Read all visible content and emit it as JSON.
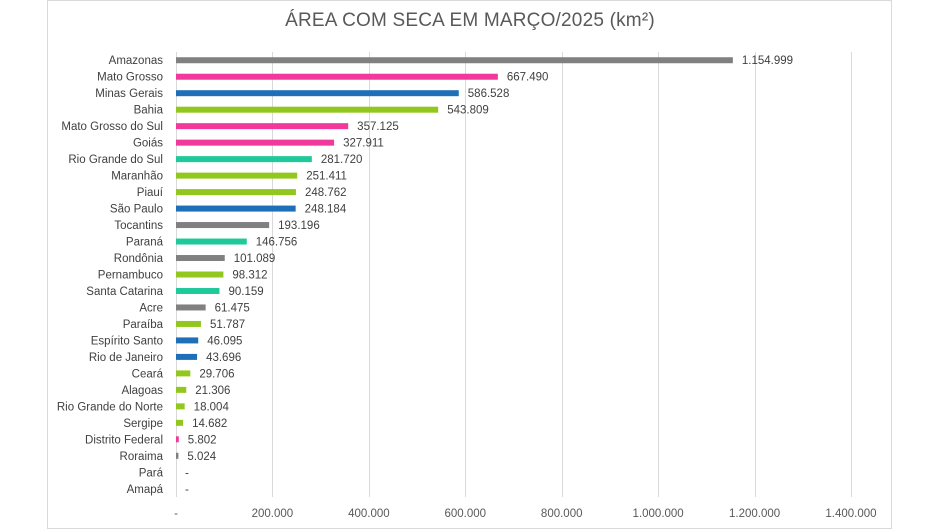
{
  "chart_data": {
    "type": "bar",
    "orientation": "horizontal",
    "title": "ÁREA COM SECA EM MARÇO/2025 (km²)",
    "xlim": [
      0,
      1400000
    ],
    "grid": "vertical",
    "x_ticks": [
      0,
      200000,
      400000,
      600000,
      800000,
      1000000,
      1200000,
      1400000
    ],
    "x_tick_labels": [
      "-",
      "200.000",
      "400.000",
      "600.000",
      "800.000",
      "1.000.000",
      "1.200.000",
      "1.400.000"
    ],
    "categories": [
      "Amazonas",
      "Mato Grosso",
      "Minas Gerais",
      "Bahia",
      "Mato Grosso do Sul",
      "Goiás",
      "Rio Grande do Sul",
      "Maranhão",
      "Piauí",
      "São Paulo",
      "Tocantins",
      "Paraná",
      "Rondônia",
      "Pernambuco",
      "Santa Catarina",
      "Acre",
      "Paraíba",
      "Espírito Santo",
      "Rio de Janeiro",
      "Ceará",
      "Alagoas",
      "Rio Grande do Norte",
      "Sergipe",
      "Distrito Federal",
      "Roraima",
      "Pará",
      "Amapá"
    ],
    "values": [
      1154999,
      667490,
      586528,
      543809,
      357125,
      327911,
      281720,
      251411,
      248762,
      248184,
      193196,
      146756,
      101089,
      98312,
      90159,
      61475,
      51787,
      46095,
      43696,
      29706,
      21306,
      18004,
      14682,
      5802,
      5024,
      0,
      0
    ],
    "value_labels": [
      "1.154.999",
      "667.490",
      "586.528",
      "543.809",
      "357.125",
      "327.911",
      "281.720",
      "251.411",
      "248.762",
      "248.184",
      "193.196",
      "146.756",
      "101.089",
      "98.312",
      "90.159",
      "61.475",
      "51.787",
      "46.095",
      "43.696",
      "29.706",
      "21.306",
      "18.004",
      "14.682",
      "5.802",
      "5.024",
      "-",
      "-"
    ],
    "colors": [
      "#808080",
      "#f0399b",
      "#1f6fb8",
      "#92c81e",
      "#f0399b",
      "#f0399b",
      "#1fc99a",
      "#92c81e",
      "#92c81e",
      "#1f6fb8",
      "#808080",
      "#1fc99a",
      "#808080",
      "#92c81e",
      "#1fc99a",
      "#808080",
      "#92c81e",
      "#1f6fb8",
      "#1f6fb8",
      "#92c81e",
      "#92c81e",
      "#92c81e",
      "#92c81e",
      "#f0399b",
      "#808080",
      "#808080",
      "#808080"
    ]
  }
}
